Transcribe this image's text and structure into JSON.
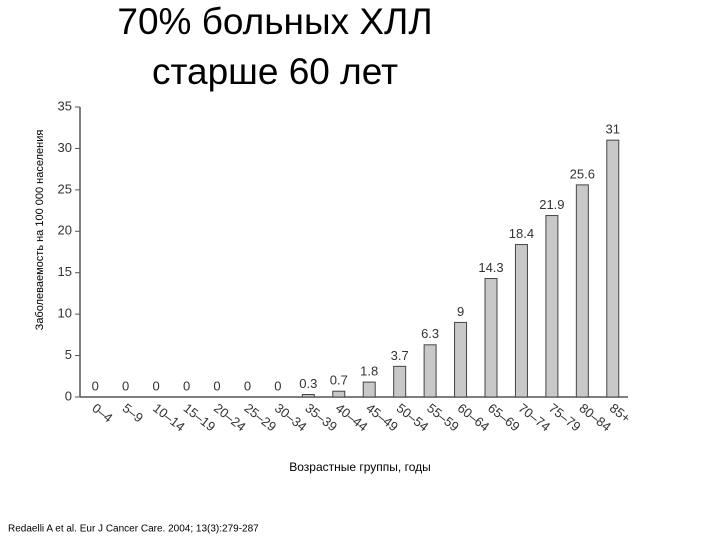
{
  "chart_data": {
    "type": "bar",
    "title": [
      "70% больных ХЛЛ",
      "старше 60 лет"
    ],
    "y_label": "Заболеваемость на 100 000 населения",
    "x_label": "Возрастные группы, годы",
    "source": "Redaelli A et al. Eur J Cancer Care. 2004; 13(3):279-287",
    "categories": [
      "0–4",
      "5–9",
      "10–14",
      "15–19",
      "20–24",
      "25–29",
      "30–34",
      "35–39",
      "40–44",
      "45–49",
      "50–54",
      "55–59",
      "60–64",
      "65–69",
      "70–74",
      "75–79",
      "80–84",
      "85+"
    ],
    "values": [
      0,
      0,
      0,
      0,
      0,
      0,
      0,
      0.3,
      0.7,
      1.8,
      3.7,
      6.3,
      9,
      14.3,
      18.4,
      21.9,
      25.6,
      31
    ],
    "color": "#c8c8c8",
    "ylim": [
      0,
      35
    ],
    "yticks": [
      0,
      5,
      10,
      15,
      20,
      25,
      30,
      35
    ]
  }
}
